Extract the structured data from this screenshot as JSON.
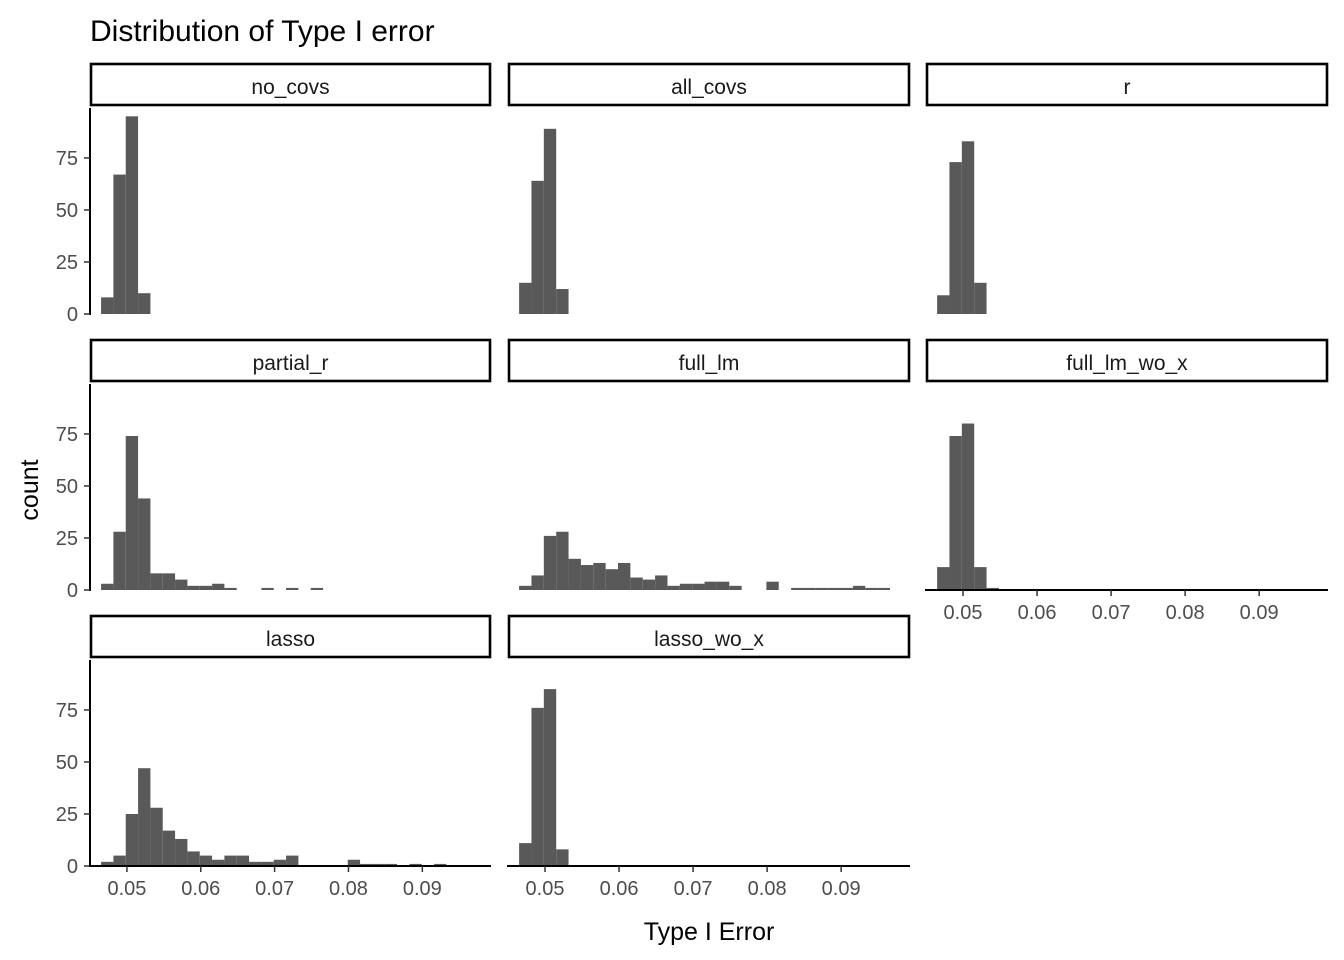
{
  "chart_data": {
    "type": "bar",
    "title": "Distribution of Type I error",
    "xlabel": "Type I Error",
    "ylabel": "count",
    "bin_width": 0.00167,
    "bin_start": 0.0465,
    "xlim": [
      0.045,
      0.0993
    ],
    "ylim": [
      0,
      99
    ],
    "x_ticks": [
      0.05,
      0.06,
      0.07,
      0.08,
      0.09
    ],
    "x_tick_labels": [
      "0.05",
      "0.06",
      "0.07",
      "0.08",
      "0.09"
    ],
    "y_ticks": [
      0,
      25,
      50,
      75
    ],
    "y_tick_labels": [
      "0",
      "25",
      "50",
      "75"
    ],
    "grid": false,
    "bar_color": "#595959",
    "panels": [
      {
        "name": "no_covs",
        "counts": [
          8,
          67,
          95,
          10
        ]
      },
      {
        "name": "all_covs",
        "counts": [
          15,
          64,
          89,
          12
        ]
      },
      {
        "name": "r",
        "counts": [
          9,
          73,
          83,
          15
        ]
      },
      {
        "name": "partial_r",
        "counts": [
          3,
          28,
          74,
          44,
          8,
          8,
          5,
          2,
          2,
          3,
          1,
          0,
          0,
          1,
          0,
          1,
          0,
          1
        ]
      },
      {
        "name": "full_lm",
        "counts": [
          2,
          7,
          26,
          28,
          15,
          12,
          13,
          10,
          13,
          6,
          5,
          7,
          2,
          3,
          3,
          4,
          4,
          2,
          0,
          0,
          4,
          0,
          1,
          1,
          1,
          1,
          1,
          2,
          1,
          1
        ]
      },
      {
        "name": "full_lm_wo_x",
        "counts": [
          11,
          74,
          80,
          11,
          1
        ]
      },
      {
        "name": "lasso",
        "counts": [
          2,
          5,
          25,
          47,
          28,
          17,
          13,
          7,
          5,
          3,
          5,
          5,
          2,
          2,
          3,
          5,
          0,
          0,
          0,
          0,
          3,
          1,
          1,
          1,
          0,
          1,
          0,
          1
        ]
      },
      {
        "name": "lasso_wo_x",
        "counts": [
          11,
          76,
          85,
          8
        ]
      }
    ]
  }
}
